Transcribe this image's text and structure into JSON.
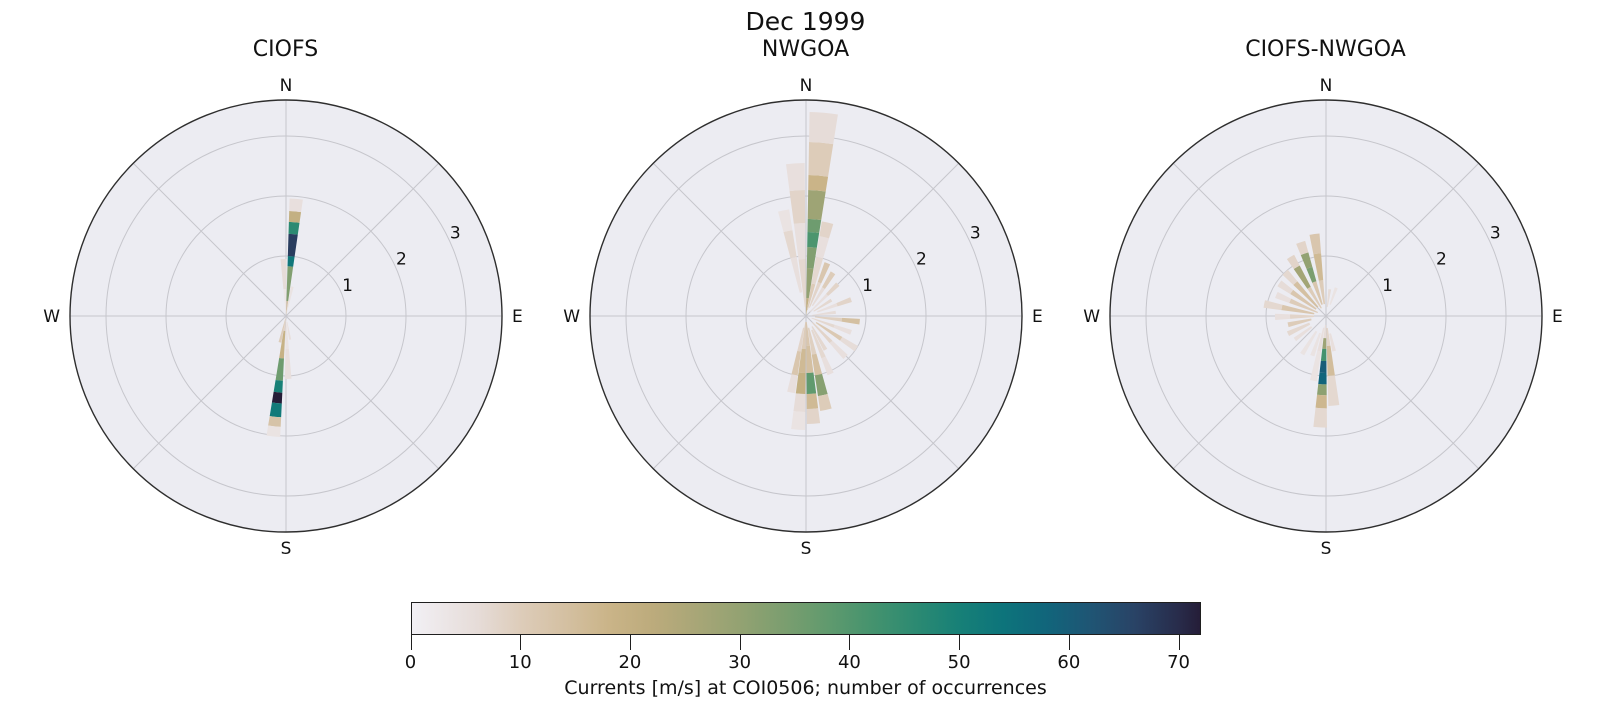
{
  "chart_data": {
    "type": "polar_rose",
    "suptitle": "Dec 1999",
    "style": {
      "face_color": "#ececf2",
      "grid_color": "#c6c6cc",
      "spine_color": "#2e2e2e",
      "text_color": "#111111",
      "figure_background": "#ffffff"
    },
    "r_axis": {
      "ticks": [
        1,
        2,
        3
      ],
      "max": 3.6,
      "label_angle_deg": 64
    },
    "compass_labels": [
      "N",
      "E",
      "S",
      "W"
    ],
    "colorbar": {
      "label": "Currents [m/s] at COI0506; number of occurrences",
      "ticks": [
        0,
        10,
        20,
        30,
        40,
        50,
        60,
        70
      ],
      "vmin": 0,
      "vmax": 72,
      "orientation": "horizontal",
      "stops": [
        [
          0,
          "#f2f0f5"
        ],
        [
          6,
          "#e6dcd8"
        ],
        [
          10,
          "#ddccb9"
        ],
        [
          14,
          "#d4c0a2"
        ],
        [
          18,
          "#cab488"
        ],
        [
          22,
          "#bcab7c"
        ],
        [
          26,
          "#a8a677"
        ],
        [
          30,
          "#93a272"
        ],
        [
          34,
          "#7b9e6f"
        ],
        [
          38,
          "#609a6e"
        ],
        [
          42,
          "#45936e"
        ],
        [
          46,
          "#2c8a72"
        ],
        [
          50,
          "#178077"
        ],
        [
          54,
          "#0d747b"
        ],
        [
          58,
          "#11657b"
        ],
        [
          62,
          "#1f5574"
        ],
        [
          66,
          "#294366"
        ],
        [
          70,
          "#282c4b"
        ],
        [
          72,
          "#251d38"
        ]
      ]
    },
    "subplots": [
      {
        "title": "CIOFS",
        "petals": [
          {
            "az": 5,
            "w": 6.5,
            "segments": [
              [
                0,
                0.25,
                14
              ],
              [
                0.25,
                0.83,
                33
              ],
              [
                0.83,
                1.0,
                53
              ],
              [
                1.0,
                1.37,
                67
              ],
              [
                1.37,
                1.57,
                46
              ],
              [
                1.57,
                1.75,
                20
              ],
              [
                1.75,
                1.96,
                5
              ]
            ]
          },
          {
            "az": -2.5,
            "w": 6,
            "segments": [
              [
                0,
                0.45,
                3
              ],
              [
                0.45,
                0.95,
                6
              ]
            ]
          },
          {
            "az": 12,
            "w": 5.5,
            "segments": [
              [
                0.05,
                0.5,
                4
              ]
            ]
          },
          {
            "az": 186,
            "w": 6.5,
            "segments": [
              [
                0,
                0.25,
                8
              ],
              [
                0.25,
                0.71,
                19
              ],
              [
                0.71,
                1.08,
                36
              ],
              [
                1.08,
                1.28,
                50
              ],
              [
                1.28,
                1.46,
                72
              ],
              [
                1.46,
                1.69,
                52
              ],
              [
                1.69,
                1.85,
                13
              ],
              [
                1.85,
                2.02,
                4
              ]
            ]
          },
          {
            "az": 178,
            "w": 6,
            "segments": [
              [
                0.05,
                0.55,
                4
              ],
              [
                0.55,
                1.05,
                5
              ]
            ]
          },
          {
            "az": 193,
            "w": 6,
            "segments": [
              [
                0.05,
                0.45,
                10
              ]
            ]
          },
          {
            "az": 170,
            "w": 5,
            "segments": [
              [
                0.1,
                0.4,
                5
              ]
            ]
          }
        ]
      },
      {
        "title": "NWGOA",
        "petals": [
          {
            "az": 5,
            "w": 8,
            "segments": [
              [
                0,
                0.3,
                20
              ],
              [
                0.3,
                0.8,
                30
              ],
              [
                0.8,
                1.15,
                33
              ],
              [
                1.15,
                1.4,
                41
              ],
              [
                1.4,
                1.62,
                36
              ],
              [
                1.62,
                2.1,
                28
              ],
              [
                2.1,
                2.35,
                18
              ],
              [
                2.35,
                2.9,
                10
              ],
              [
                2.9,
                3.4,
                6
              ]
            ]
          },
          {
            "az": -4,
            "w": 7,
            "segments": [
              [
                0.15,
                0.95,
                7
              ],
              [
                0.95,
                1.55,
                5
              ],
              [
                1.55,
                2.1,
                8
              ],
              [
                2.1,
                2.55,
                5
              ]
            ]
          },
          {
            "az": -12,
            "w": 6,
            "segments": [
              [
                0.4,
                1.0,
                5
              ],
              [
                1.0,
                1.45,
                7
              ],
              [
                1.45,
                1.8,
                4
              ]
            ]
          },
          {
            "az": 13,
            "w": 7,
            "segments": [
              [
                0.1,
                0.55,
                10
              ],
              [
                0.55,
                1.0,
                7
              ],
              [
                1.0,
                1.35,
                5
              ],
              [
                1.35,
                1.6,
                8
              ]
            ]
          },
          {
            "az": 22,
            "w": 6,
            "segments": [
              [
                0.15,
                0.6,
                8
              ],
              [
                0.6,
                0.95,
                12
              ]
            ]
          },
          {
            "az": 32,
            "w": 6,
            "segments": [
              [
                0.2,
                0.55,
                6
              ],
              [
                0.55,
                0.85,
                10
              ]
            ]
          },
          {
            "az": 45,
            "w": 6,
            "segments": [
              [
                0.1,
                0.5,
                5
              ],
              [
                0.5,
                0.75,
                8
              ]
            ]
          },
          {
            "az": 58,
            "w": 6,
            "segments": [
              [
                0.15,
                0.5,
                7
              ]
            ]
          },
          {
            "az": 70,
            "w": 6,
            "segments": [
              [
                0.2,
                0.55,
                5
              ],
              [
                0.55,
                0.8,
                8
              ]
            ]
          },
          {
            "az": 83,
            "w": 6,
            "segments": [
              [
                0.1,
                0.5,
                6
              ]
            ]
          },
          {
            "az": 96,
            "w": 6,
            "segments": [
              [
                0.15,
                0.6,
                9
              ],
              [
                0.6,
                0.9,
                14
              ]
            ]
          },
          {
            "az": 110,
            "w": 6,
            "segments": [
              [
                0.1,
                0.5,
                7
              ],
              [
                0.5,
                0.8,
                5
              ]
            ]
          },
          {
            "az": 123,
            "w": 6,
            "segments": [
              [
                0.2,
                0.7,
                11
              ],
              [
                0.7,
                1.0,
                6
              ]
            ]
          },
          {
            "az": 136,
            "w": 6,
            "segments": [
              [
                0.15,
                0.6,
                8
              ],
              [
                0.6,
                0.95,
                5
              ]
            ]
          },
          {
            "az": 150,
            "w": 6,
            "segments": [
              [
                0.2,
                0.65,
                7
              ]
            ]
          },
          {
            "az": 157,
            "w": 6,
            "segments": [
              [
                0.25,
                0.75,
                7
              ],
              [
                0.75,
                1.05,
                5
              ]
            ]
          },
          {
            "az": 168,
            "w": 7,
            "segments": [
              [
                0.2,
                0.65,
                9
              ],
              [
                0.65,
                1.0,
                14
              ],
              [
                1.0,
                1.35,
                32
              ],
              [
                1.35,
                1.6,
                10
              ]
            ]
          },
          {
            "az": 176,
            "w": 7,
            "segments": [
              [
                0.1,
                0.5,
                12
              ],
              [
                0.5,
                0.95,
                14
              ],
              [
                0.95,
                1.3,
                38
              ],
              [
                1.3,
                1.55,
                16
              ],
              [
                1.55,
                1.8,
                8
              ]
            ]
          },
          {
            "az": 184,
            "w": 7,
            "segments": [
              [
                0.1,
                0.55,
                10
              ],
              [
                0.55,
                0.95,
                16
              ],
              [
                0.95,
                1.3,
                20
              ],
              [
                1.3,
                1.6,
                6
              ],
              [
                1.6,
                1.9,
                4
              ]
            ]
          },
          {
            "az": 191,
            "w": 6,
            "segments": [
              [
                0.2,
                0.6,
                8
              ],
              [
                0.6,
                1.0,
                12
              ],
              [
                1.0,
                1.3,
                5
              ]
            ]
          }
        ]
      },
      {
        "title": "CIOFS-NWGOA",
        "petals": [
          {
            "az": 352,
            "w": 7,
            "segments": [
              [
                0.2,
                0.6,
                10
              ],
              [
                0.6,
                1.05,
                16
              ],
              [
                1.05,
                1.38,
                12
              ]
            ]
          },
          {
            "az": 341,
            "w": 7,
            "segments": [
              [
                0.2,
                0.6,
                12
              ],
              [
                0.6,
                0.85,
                34
              ],
              [
                0.85,
                1.1,
                30
              ],
              [
                1.1,
                1.3,
                8
              ]
            ]
          },
          {
            "az": 329,
            "w": 7,
            "segments": [
              [
                0.15,
                0.55,
                10
              ],
              [
                0.55,
                0.95,
                27
              ],
              [
                0.95,
                1.15,
                8
              ]
            ]
          },
          {
            "az": 317,
            "w": 7,
            "segments": [
              [
                0.2,
                0.75,
                14
              ],
              [
                0.75,
                1.0,
                7
              ]
            ]
          },
          {
            "az": 305,
            "w": 7,
            "segments": [
              [
                0.2,
                0.7,
                12
              ],
              [
                0.7,
                0.95,
                6
              ]
            ]
          },
          {
            "az": 293,
            "w": 7,
            "segments": [
              [
                0.15,
                0.65,
                10
              ],
              [
                0.65,
                0.9,
                5
              ]
            ]
          },
          {
            "az": 281,
            "w": 7,
            "segments": [
              [
                0.2,
                0.75,
                12
              ],
              [
                0.75,
                1.05,
                7
              ]
            ]
          },
          {
            "az": 269,
            "w": 7,
            "segments": [
              [
                0.2,
                0.6,
                8
              ],
              [
                0.6,
                0.85,
                5
              ]
            ]
          },
          {
            "az": 257,
            "w": 7,
            "segments": [
              [
                0.25,
                0.65,
                10
              ]
            ]
          },
          {
            "az": 245,
            "w": 7,
            "segments": [
              [
                0.3,
                0.7,
                7
              ]
            ]
          },
          {
            "az": 233,
            "w": 6,
            "segments": [
              [
                0.3,
                0.65,
                5
              ]
            ]
          },
          {
            "az": 212,
            "w": 6,
            "segments": [
              [
                0.3,
                0.75,
                4
              ]
            ]
          },
          {
            "az": 8,
            "w": 6,
            "segments": [
              [
                0.15,
                0.45,
                6
              ]
            ]
          },
          {
            "az": 20,
            "w": 6,
            "segments": [
              [
                0.2,
                0.5,
                4
              ]
            ]
          },
          {
            "az": 183,
            "w": 7,
            "segments": [
              [
                0.15,
                0.37,
                6
              ],
              [
                0.37,
                0.55,
                28
              ],
              [
                0.55,
                0.75,
                42
              ],
              [
                0.75,
                0.95,
                60
              ],
              [
                0.95,
                1.14,
                58
              ],
              [
                1.14,
                1.32,
                31
              ],
              [
                1.32,
                1.54,
                17
              ],
              [
                1.54,
                1.86,
                7
              ]
            ]
          },
          {
            "az": 175,
            "w": 7,
            "segments": [
              [
                0.2,
                0.5,
                8
              ],
              [
                0.5,
                1.0,
                15
              ],
              [
                1.0,
                1.5,
                7
              ]
            ]
          },
          {
            "az": 191,
            "w": 6,
            "segments": [
              [
                0.2,
                0.6,
                5
              ],
              [
                0.6,
                1.1,
                4
              ]
            ]
          },
          {
            "az": 199,
            "w": 6,
            "segments": [
              [
                0.3,
                0.7,
                4
              ]
            ]
          },
          {
            "az": 167,
            "w": 6,
            "segments": [
              [
                0.3,
                0.6,
                5
              ]
            ]
          }
        ]
      }
    ]
  }
}
